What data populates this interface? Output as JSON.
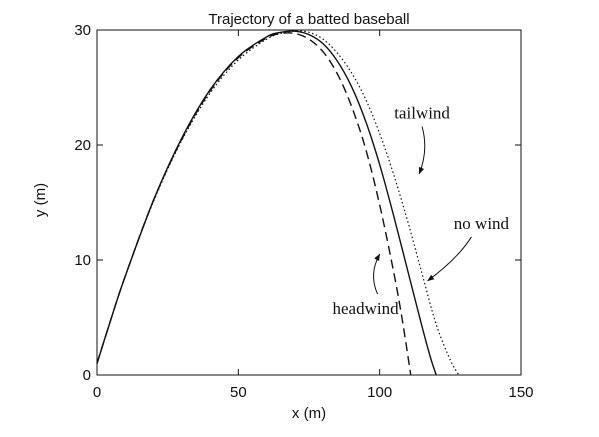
{
  "chart_data": {
    "type": "line",
    "title": "Trajectory of a batted baseball",
    "xlabel": "x (m)",
    "ylabel": "y (m)",
    "xlim": [
      0,
      150
    ],
    "ylim": [
      0,
      30
    ],
    "xticks": [
      0,
      50,
      100,
      150
    ],
    "yticks": [
      0,
      10,
      20,
      30
    ],
    "grid": false,
    "series": [
      {
        "name": "no wind",
        "style": "solid",
        "color": "#111111",
        "x": [
          0,
          5,
          10,
          20,
          30,
          40,
          50,
          60,
          65,
          70,
          75,
          80,
          85,
          90,
          95,
          100,
          105,
          110,
          115,
          118,
          120
        ],
        "y": [
          1.0,
          4.9,
          8.6,
          15.2,
          20.6,
          24.8,
          27.7,
          29.4,
          29.8,
          29.9,
          29.6,
          28.8,
          27.3,
          25.1,
          22.1,
          18.3,
          13.8,
          9.0,
          4.2,
          1.5,
          0
        ]
      },
      {
        "name": "headwind",
        "style": "dashed",
        "color": "#111111",
        "x": [
          0,
          5,
          10,
          20,
          30,
          40,
          50,
          60,
          65,
          70,
          75,
          80,
          85,
          90,
          95,
          100,
          105,
          108,
          111
        ],
        "y": [
          1.0,
          4.9,
          8.6,
          15.2,
          20.5,
          24.7,
          27.6,
          29.3,
          29.7,
          29.7,
          29.2,
          28.1,
          26.2,
          23.4,
          19.7,
          14.8,
          8.9,
          4.8,
          0
        ]
      },
      {
        "name": "tailwind",
        "style": "dotted",
        "color": "#111111",
        "x": [
          0,
          5,
          10,
          20,
          30,
          40,
          50,
          60,
          65,
          70,
          75,
          80,
          85,
          90,
          95,
          100,
          105,
          110,
          115,
          120,
          125,
          128
        ],
        "y": [
          1.0,
          4.9,
          8.6,
          15.1,
          20.4,
          24.5,
          27.4,
          29.2,
          29.7,
          29.9,
          29.8,
          29.2,
          28.0,
          26.3,
          24.0,
          21.0,
          17.4,
          13.3,
          8.8,
          4.4,
          1.3,
          0
        ]
      }
    ],
    "annotations": [
      {
        "text": "tailwind",
        "x": 115,
        "y": 22.3,
        "arrow_to": [
          114,
          17.5
        ]
      },
      {
        "text": "no wind",
        "x": 136,
        "y": 12.7,
        "arrow_to": [
          117,
          8.2
        ]
      },
      {
        "text": "headwind",
        "x": 95,
        "y": 5.3,
        "arrow_to": [
          100,
          10.5
        ]
      }
    ]
  }
}
